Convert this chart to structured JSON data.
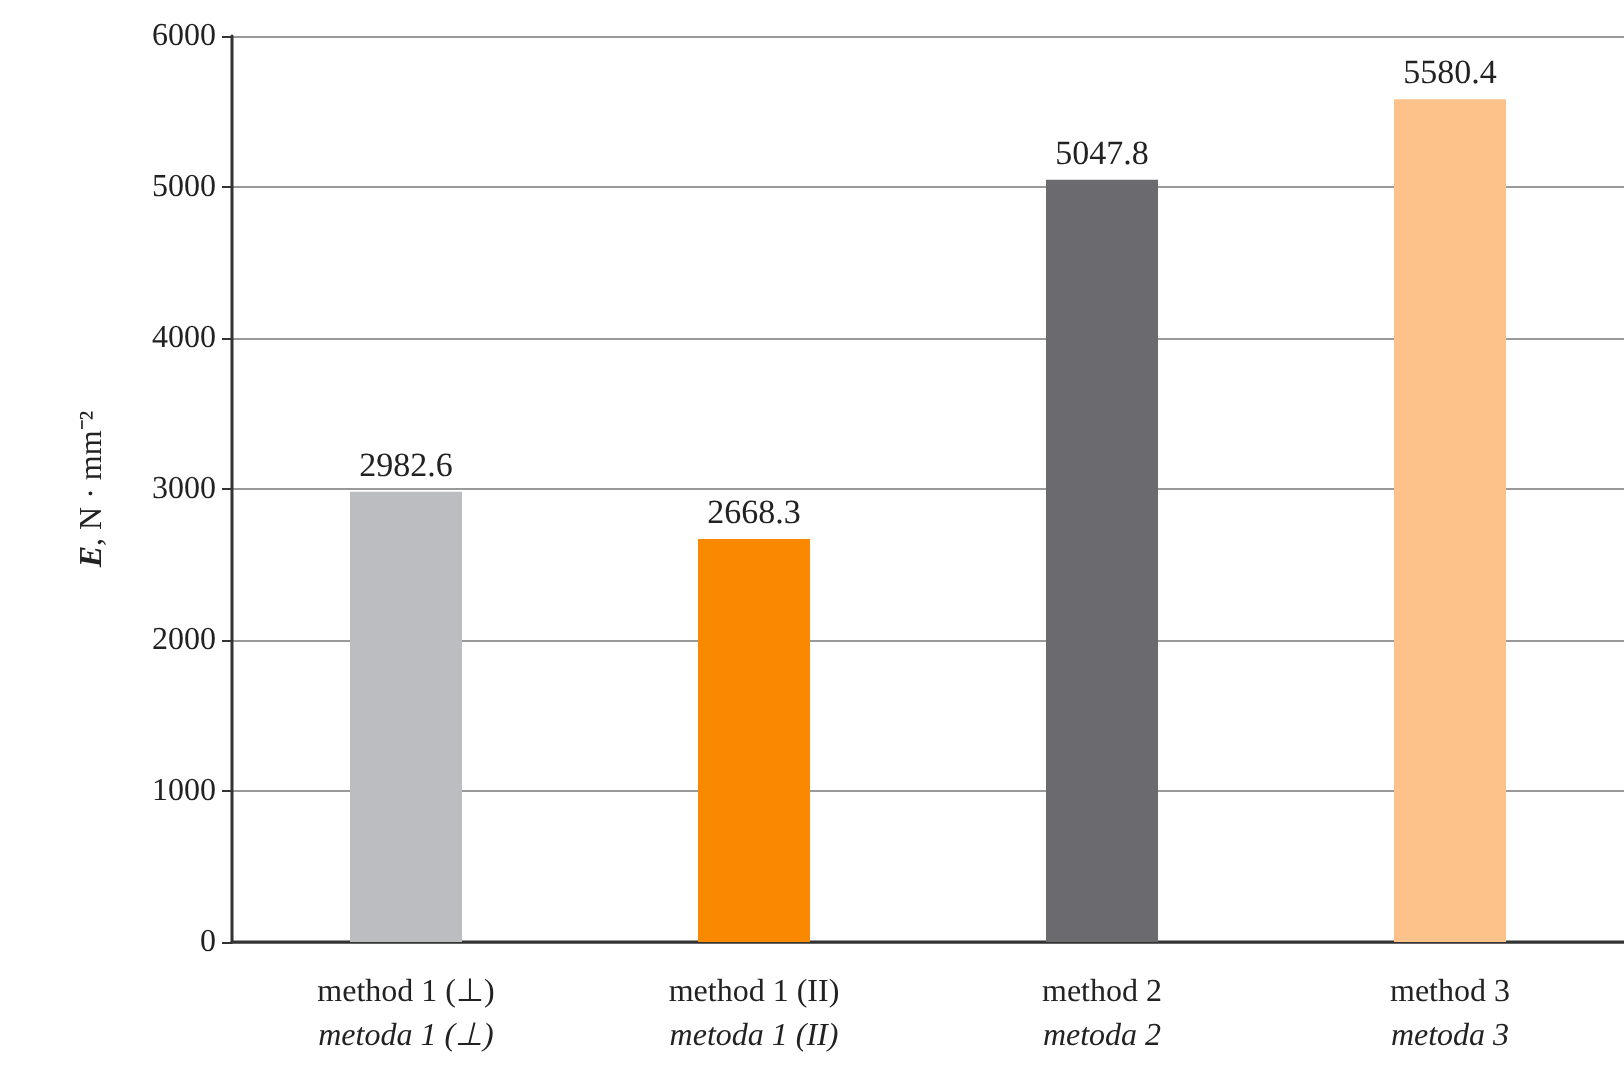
{
  "chart_data": {
    "type": "bar",
    "ylabel": "E, N · mm⁻²",
    "categories": [
      "method 1 (⊥)\nmetoda 1 (⊥)",
      "method 1 (II)\nmetoda 1 (II)",
      "method 2\nmetoda 2",
      "method 3\nmetoda 3"
    ],
    "values": [
      2982.6,
      2668.3,
      5047.8,
      5580.4
    ],
    "colors": [
      "#bcbdc0",
      "#f98a00",
      "#6b6b6f",
      "#fdc28a"
    ],
    "ylim": [
      0,
      6000
    ],
    "yticks": [
      0,
      1000,
      2000,
      3000,
      4000,
      5000,
      6000
    ],
    "grid": "y",
    "data_labels": true
  }
}
